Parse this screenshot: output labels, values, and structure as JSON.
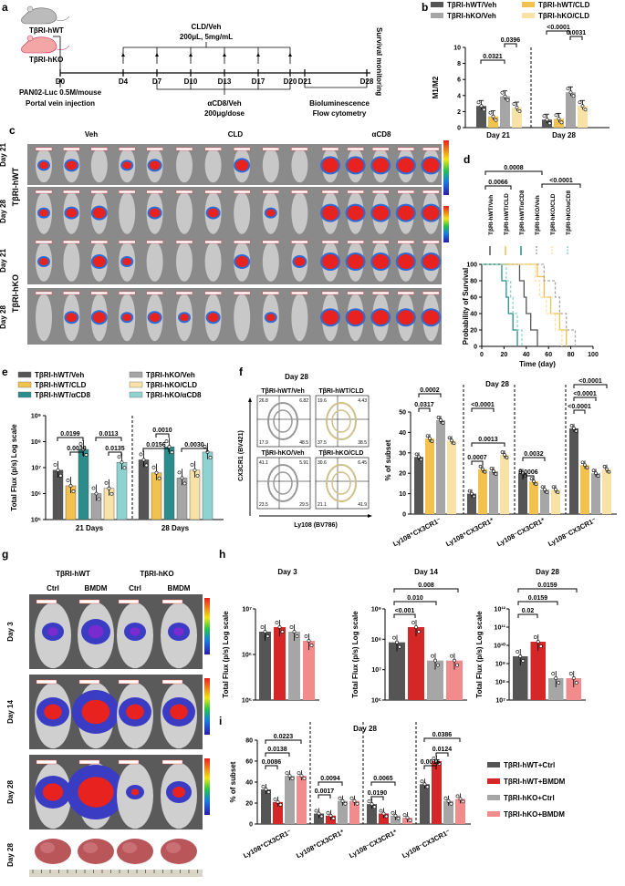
{
  "colors": {
    "hwt_veh": "#555555",
    "hko_veh": "#a6a6a6",
    "hwt_cld": "#f2c14e",
    "hko_cld": "#f9e2a6",
    "hwt_cd8": "#2b8c8c",
    "hko_cd8": "#8fd3d0",
    "ctrl_hwt": "#555555",
    "bmdm_hwt": "#d62728",
    "ctrl_hko": "#a6a6a6",
    "bmdm_hko": "#f28b8b",
    "imgbg": "#7d7d7d",
    "tumor_red": "#e8221e"
  },
  "panel_labels": {
    "a": "a",
    "b": "b",
    "c": "c",
    "d": "d",
    "e": "e",
    "f": "f",
    "g": "g",
    "h": "h",
    "i": "i"
  },
  "a": {
    "mouse_hwt": "TβRI-hWT",
    "mouse_hko": "TβRI-hKO",
    "cld_title": "CLD/Veh",
    "cld_dose": "200μL, 5mg/mL",
    "days": [
      "D0",
      "D4",
      "D7",
      "D10",
      "D13",
      "D17",
      "D20",
      "D21",
      "D28"
    ],
    "survival": "Survival monitoring",
    "inj1": "PAN02-Luc 0.5M/mouse",
    "inj2": "Portal vein injection",
    "cd8_title": "αCD8/Veh",
    "cd8_dose": "200μg/dose",
    "biolum": "Bioluminescence",
    "flow": "Flow cytometry"
  },
  "b": {
    "legend": [
      "TβRI-hWT/Veh",
      "TβRI-hWT/CLD",
      "TβRI-hKO/Veh",
      "TβRI-hKO/CLD"
    ],
    "ylabel": "M1/M2",
    "yticks": [
      "0",
      "2",
      "4",
      "6",
      "8",
      "10"
    ],
    "groups": [
      "Day 21",
      "Day 28"
    ],
    "pvals": [
      "0.0321",
      "0.0396",
      "<0.0001",
      "0.0031"
    ]
  },
  "c": {
    "cols": [
      "Veh",
      "CLD",
      "αCD8"
    ],
    "group_hwt": "TβRI-hWT",
    "group_hko": "TβRI-hKO",
    "days": [
      "Day 21",
      "Day 28",
      "Day 21",
      "Day 28"
    ]
  },
  "d": {
    "pvals": [
      "0.0008",
      "0.0066",
      "<0.0001"
    ],
    "legend": [
      "TβRI-hWT/Veh",
      "TβRI-hWT/CLD",
      "TβRI-hWT/αCD8",
      "TβRI-hKO/Veh",
      "TβRI-hKO/CLD",
      "TβRI-hKO/αCD8"
    ],
    "ylabel": "Probability of Survival",
    "xlabel": "Time (day)",
    "yticks": [
      "0",
      "20",
      "40",
      "60",
      "80",
      "100"
    ],
    "xticks": [
      "0",
      "20",
      "40",
      "60",
      "80",
      "100"
    ]
  },
  "e": {
    "legend": [
      "TβRI-hWT/Veh",
      "TβRI-hWT/CLD",
      "TβRI-hWT/αCD8",
      "TβRI-hKO/Veh",
      "TβRI-hKO/CLD",
      "TβRI-hKO/αCD8"
    ],
    "ylabel": "Total Flux (p/s) Log scale",
    "yticks": [
      "10⁵",
      "10⁶",
      "10⁷",
      "10⁸",
      "10⁹"
    ],
    "groups": [
      "21 Days",
      "28 Days"
    ],
    "pvals": [
      "0.0199",
      "0.0030",
      "0.0113",
      "0.0135",
      "0.0010",
      "0.0156",
      "0.0030"
    ]
  },
  "f": {
    "title": "Day 28",
    "plots": [
      "TβRI-hWT/Veh",
      "TβRI-hWT/CLD",
      "TβRI-hKO/Veh",
      "TβRI-hKO/CLD"
    ],
    "ylabel": "CX3CR1 (BV421)",
    "xlabel": "Ly108 (BV786)",
    "bar_title": "Day 28",
    "bar_ylabel": "% of subset",
    "yticks": [
      "0",
      "10",
      "20",
      "30",
      "40",
      "50"
    ],
    "cats": [
      "Ly108⁺CX3CR1⁻",
      "Ly108⁺CX3CR1⁺",
      "Ly108⁻CX3CR1⁺",
      "Ly108⁻CX3CR1⁻"
    ],
    "pvals": [
      "0.0002",
      "0.0317",
      "<0.0001",
      "0.0013",
      "0.0007",
      "0.0032",
      "0.0006",
      "<0.0001",
      "<0.0001",
      "<0.0001"
    ],
    "quad_vals": [
      "26.8",
      "6.82",
      "17.9",
      "48.5",
      "19.6",
      "4.43",
      "37.5",
      "38.5",
      "41.1",
      "5.91",
      "23.5",
      "29.5",
      "30.6",
      "6.45",
      "21.1",
      "41.9"
    ]
  },
  "g": {
    "group_hwt": "TβRI-hWT",
    "group_hko": "TβRI-hKO",
    "cols": [
      "Ctrl",
      "BMDM",
      "Ctrl",
      "BMDM"
    ],
    "days": [
      "Day 3",
      "Day 14",
      "Day 28",
      "Day 28"
    ]
  },
  "h": {
    "ylabel": "Total Flux (p/s) Log scale",
    "titles": [
      "Day 3",
      "Day 14",
      "Day 28"
    ],
    "yt1": [
      "10⁵",
      "10⁶",
      "10⁷"
    ],
    "yt2": [
      "10⁶",
      "10⁷",
      "10⁸",
      "10⁹"
    ],
    "yt3": [
      "10⁷",
      "10⁸",
      "10⁹",
      "10¹⁰",
      "10¹¹",
      "10¹²"
    ],
    "pv2": [
      "0.008",
      "0.010",
      "<0.001"
    ],
    "pv3": [
      "0.0159",
      "0.0159",
      "0.02"
    ]
  },
  "i": {
    "title": "Day 28",
    "ylabel": "% of subset",
    "yticks": [
      "0",
      "20",
      "40",
      "60",
      "80"
    ],
    "cats": [
      "Ly108⁺CX3CR1⁻",
      "Ly108⁺CX3CR1⁺",
      "Ly108⁻CX3CR1⁺",
      "Ly108⁻CX3CR1⁻"
    ],
    "pvals": [
      "0.0223",
      "0.0138",
      "0.0086",
      "0.0094",
      "0.0017",
      "0.0065",
      "0.0190",
      "0.0386",
      "0.0124",
      "0.0016"
    ],
    "legend": [
      "TβRI-hWT+Ctrl",
      "TβRI-hWT+BMDM",
      "TβRI-hKO+Ctrl",
      "TβRI-hKO+BMDM"
    ]
  }
}
